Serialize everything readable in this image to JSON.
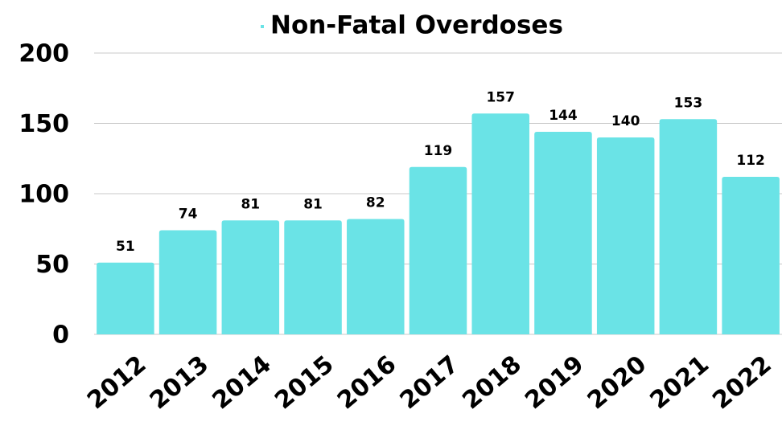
{
  "chart_data": {
    "type": "bar",
    "categories": [
      "2012",
      "2013",
      "2014",
      "2015",
      "2016",
      "2017",
      "2018",
      "2019",
      "2020",
      "2021",
      "2022"
    ],
    "series": [
      {
        "name": "Non-Fatal Overdoses",
        "color": "#6ae3e6",
        "values": [
          51,
          74,
          81,
          81,
          82,
          119,
          157,
          144,
          140,
          153,
          112
        ]
      }
    ],
    "ylim": [
      0,
      200
    ],
    "yticks": [
      0,
      50,
      100,
      150,
      200
    ],
    "grid": true,
    "legend": "top"
  }
}
